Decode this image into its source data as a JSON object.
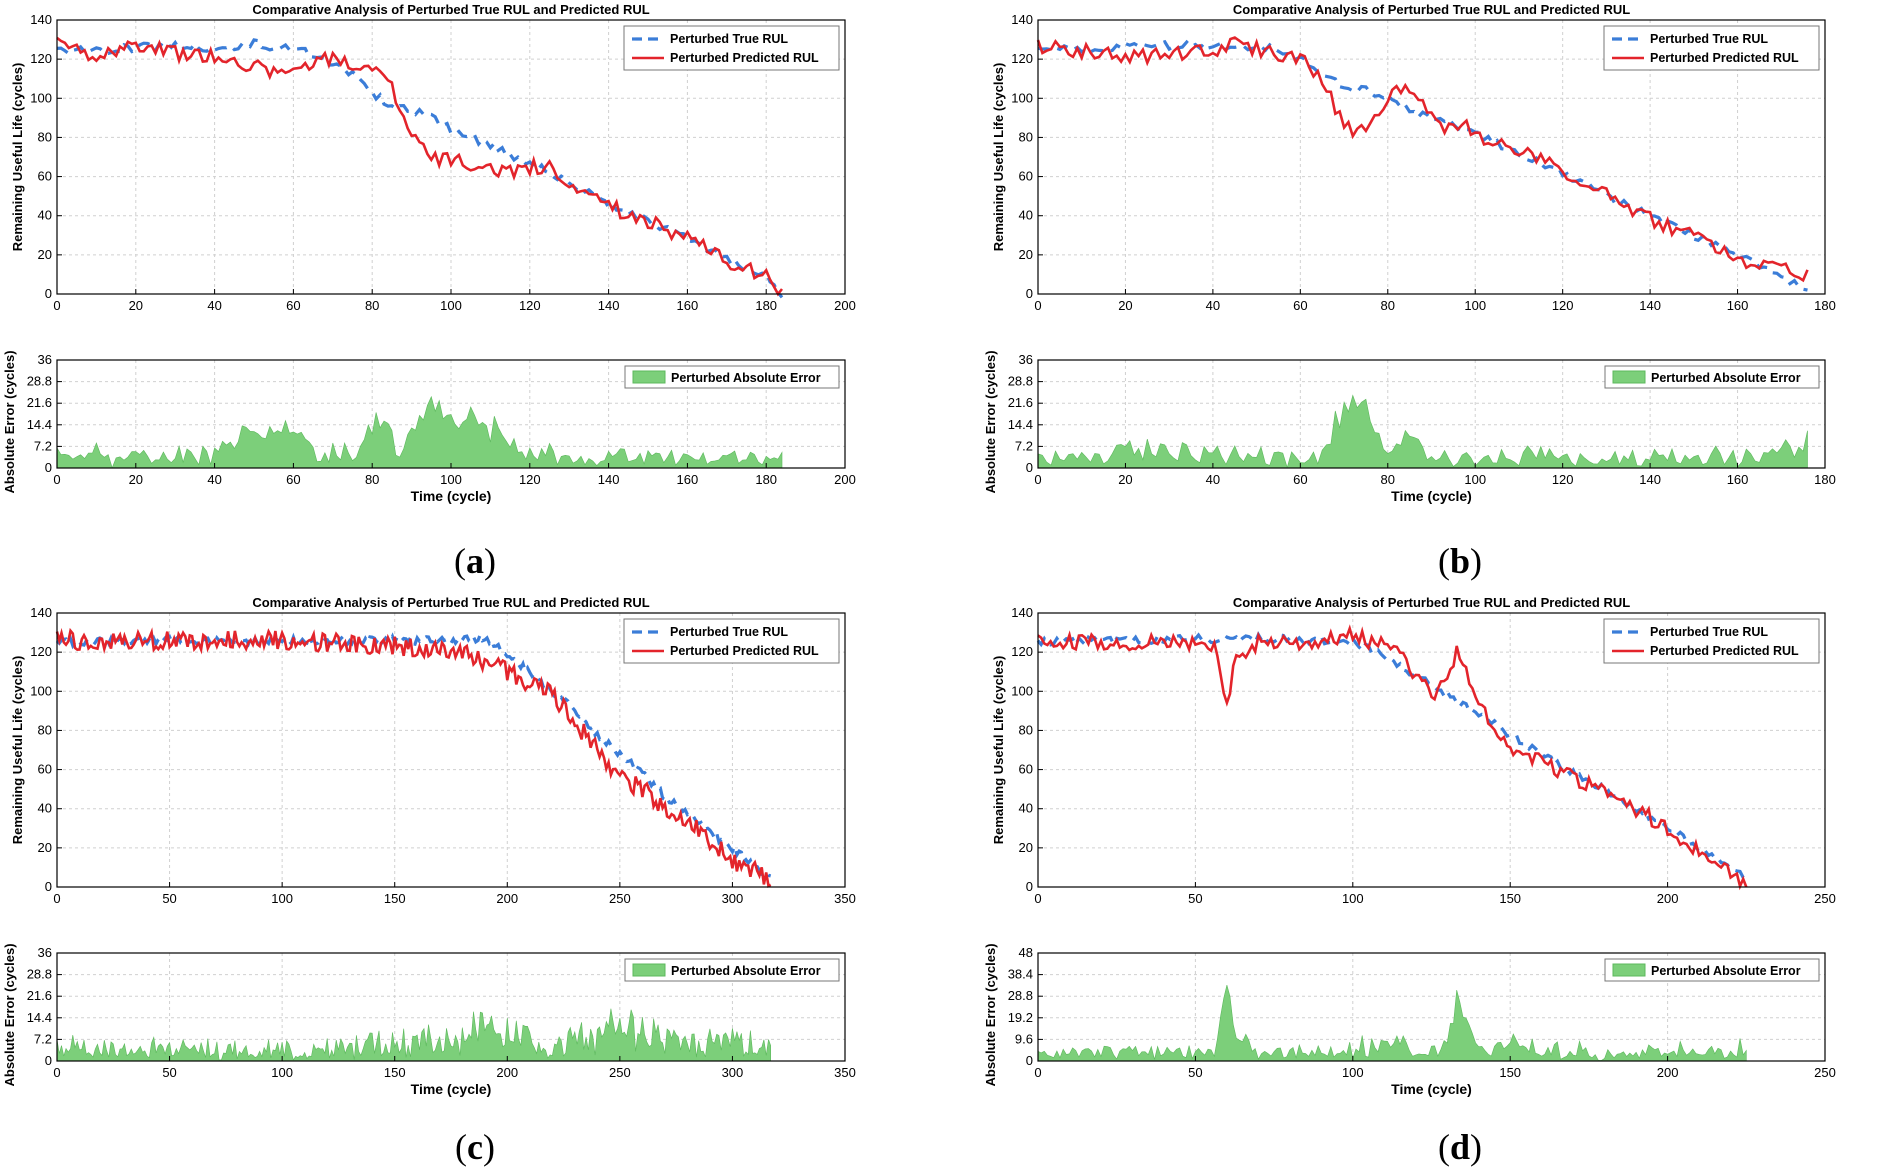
{
  "colors": {
    "true_rul": "#3b7dd8",
    "pred_rul": "#e3242b",
    "error_fill": "#7ccf7a",
    "error_edge": "#5cb85c",
    "grid": "#d0d0d0",
    "axis": "#000000"
  },
  "panels": [
    {
      "label_open": "(",
      "label_letter": "a",
      "label_close": ")"
    },
    {
      "label_open": "(",
      "label_letter": "b",
      "label_close": ")"
    },
    {
      "label_open": "(",
      "label_letter": "c",
      "label_close": ")"
    },
    {
      "label_open": "(",
      "label_letter": "d",
      "label_close": ")"
    }
  ],
  "chart_data": [
    {
      "id": "a",
      "top": {
        "type": "line",
        "title": "Comparative Analysis of Perturbed True RUL and Predicted RUL",
        "ylabel": "Remaining Useful Life (cycles)",
        "xlim": [
          0,
          200
        ],
        "ylim": [
          0,
          140
        ],
        "xticks": [
          0,
          20,
          40,
          60,
          80,
          100,
          120,
          140,
          160,
          180,
          200
        ],
        "yticks": [
          0,
          20,
          40,
          60,
          80,
          100,
          120,
          140
        ],
        "legend": [
          "Perturbed True RUL",
          "Perturbed Predicted RUL"
        ],
        "legend_position": "top-right",
        "n": 185,
        "true_knots": [
          [
            0,
            125
          ],
          [
            10,
            124
          ],
          [
            20,
            126
          ],
          [
            30,
            127
          ],
          [
            40,
            125
          ],
          [
            50,
            128
          ],
          [
            55,
            126
          ],
          [
            60,
            126
          ],
          [
            65,
            122
          ],
          [
            70,
            117
          ],
          [
            75,
            112
          ],
          [
            80,
            103
          ],
          [
            85,
            96
          ],
          [
            90,
            94
          ],
          [
            95,
            90
          ],
          [
            100,
            84
          ],
          [
            105,
            80
          ],
          [
            110,
            76
          ],
          [
            115,
            71
          ],
          [
            120,
            67
          ],
          [
            130,
            57
          ],
          [
            140,
            46
          ],
          [
            150,
            37
          ],
          [
            160,
            28
          ],
          [
            170,
            18
          ],
          [
            180,
            9
          ],
          [
            184,
            0
          ]
        ],
        "pred_knots": [
          [
            0,
            127
          ],
          [
            10,
            122
          ],
          [
            20,
            128
          ],
          [
            30,
            123
          ],
          [
            40,
            122
          ],
          [
            50,
            116
          ],
          [
            60,
            112
          ],
          [
            65,
            116
          ],
          [
            70,
            122
          ],
          [
            75,
            116
          ],
          [
            80,
            117
          ],
          [
            84,
            110
          ],
          [
            88,
            90
          ],
          [
            92,
            76
          ],
          [
            96,
            70
          ],
          [
            100,
            68
          ],
          [
            105,
            67
          ],
          [
            110,
            63
          ],
          [
            115,
            63
          ],
          [
            120,
            65
          ],
          [
            125,
            66
          ],
          [
            130,
            56
          ],
          [
            140,
            45
          ],
          [
            150,
            37
          ],
          [
            160,
            28
          ],
          [
            170,
            17
          ],
          [
            180,
            9
          ],
          [
            184,
            0
          ]
        ],
        "pred_noise": 4
      },
      "bottom": {
        "type": "area",
        "xlabel": "Time (cycle)",
        "ylabel": "Absolute Error (cycles)",
        "xlim": [
          0,
          200
        ],
        "ylim": [
          0,
          36
        ],
        "xticks": [
          0,
          20,
          40,
          60,
          80,
          100,
          120,
          140,
          160,
          180,
          200
        ],
        "yticks": [
          0,
          7.2,
          14.4,
          21.6,
          28.8,
          36
        ],
        "legend": [
          "Perturbed Absolute Error"
        ],
        "legend_position": "top-right"
      }
    },
    {
      "id": "b",
      "top": {
        "type": "line",
        "title": "Comparative Analysis of Perturbed True RUL and Predicted RUL",
        "ylabel": "Remaining Useful Life (cycles)",
        "xlim": [
          0,
          180
        ],
        "ylim": [
          0,
          140
        ],
        "xticks": [
          0,
          20,
          40,
          60,
          80,
          100,
          120,
          140,
          160,
          180
        ],
        "yticks": [
          0,
          20,
          40,
          60,
          80,
          100,
          120,
          140
        ],
        "legend": [
          "Perturbed True RUL",
          "Perturbed Predicted RUL"
        ],
        "legend_position": "top-right",
        "n": 177,
        "true_knots": [
          [
            0,
            125
          ],
          [
            10,
            125
          ],
          [
            20,
            126
          ],
          [
            30,
            127
          ],
          [
            40,
            127
          ],
          [
            50,
            126
          ],
          [
            55,
            125
          ],
          [
            60,
            120
          ],
          [
            65,
            112
          ],
          [
            70,
            106
          ],
          [
            75,
            104
          ],
          [
            80,
            100
          ],
          [
            85,
            94
          ],
          [
            90,
            90
          ],
          [
            95,
            87
          ],
          [
            100,
            82
          ],
          [
            110,
            72
          ],
          [
            120,
            62
          ],
          [
            130,
            50
          ],
          [
            140,
            40
          ],
          [
            150,
            30
          ],
          [
            160,
            20
          ],
          [
            170,
            10
          ],
          [
            176,
            0
          ]
        ],
        "pred_knots": [
          [
            0,
            126
          ],
          [
            10,
            124
          ],
          [
            20,
            122
          ],
          [
            30,
            122
          ],
          [
            40,
            125
          ],
          [
            45,
            128
          ],
          [
            50,
            125
          ],
          [
            55,
            122
          ],
          [
            60,
            120
          ],
          [
            65,
            110
          ],
          [
            68,
            95
          ],
          [
            72,
            82
          ],
          [
            76,
            86
          ],
          [
            80,
            100
          ],
          [
            85,
            106
          ],
          [
            88,
            98
          ],
          [
            92,
            84
          ],
          [
            96,
            88
          ],
          [
            100,
            82
          ],
          [
            110,
            74
          ],
          [
            120,
            62
          ],
          [
            130,
            52
          ],
          [
            140,
            38
          ],
          [
            150,
            30
          ],
          [
            160,
            18
          ],
          [
            170,
            12
          ],
          [
            176,
            10
          ]
        ],
        "pred_noise": 4
      },
      "bottom": {
        "type": "area",
        "xlabel": "Time (cycle)",
        "ylabel": "Absolute Error (cycles)",
        "xlim": [
          0,
          180
        ],
        "ylim": [
          0,
          36
        ],
        "xticks": [
          0,
          20,
          40,
          60,
          80,
          100,
          120,
          140,
          160,
          180
        ],
        "yticks": [
          0,
          7.2,
          14.4,
          21.6,
          28.8,
          36
        ],
        "legend": [
          "Perturbed Absolute Error"
        ],
        "legend_position": "top-right"
      }
    },
    {
      "id": "c",
      "top": {
        "type": "line",
        "title": "Comparative Analysis of Perturbed True RUL and Predicted RUL",
        "ylabel": "Remaining Useful Life (cycles)",
        "xlim": [
          0,
          350
        ],
        "ylim": [
          0,
          140
        ],
        "xticks": [
          0,
          50,
          100,
          150,
          200,
          250,
          300,
          350
        ],
        "yticks": [
          0,
          20,
          40,
          60,
          80,
          100,
          120,
          140
        ],
        "legend": [
          "Perturbed True RUL",
          "Perturbed Predicted RUL"
        ],
        "legend_position": "top-right",
        "n": 318,
        "true_knots": [
          [
            0,
            125
          ],
          [
            50,
            126
          ],
          [
            100,
            126
          ],
          [
            150,
            126
          ],
          [
            180,
            126
          ],
          [
            190,
            128
          ],
          [
            200,
            118
          ],
          [
            210,
            110
          ],
          [
            220,
            100
          ],
          [
            230,
            90
          ],
          [
            240,
            78
          ],
          [
            250,
            68
          ],
          [
            260,
            58
          ],
          [
            270,
            46
          ],
          [
            280,
            38
          ],
          [
            290,
            28
          ],
          [
            300,
            20
          ],
          [
            310,
            10
          ],
          [
            317,
            4
          ]
        ],
        "pred_knots": [
          [
            0,
            126
          ],
          [
            50,
            126
          ],
          [
            100,
            126
          ],
          [
            150,
            123
          ],
          [
            180,
            120
          ],
          [
            190,
            114
          ],
          [
            200,
            110
          ],
          [
            210,
            104
          ],
          [
            220,
            98
          ],
          [
            230,
            84
          ],
          [
            240,
            70
          ],
          [
            250,
            56
          ],
          [
            260,
            50
          ],
          [
            270,
            40
          ],
          [
            280,
            34
          ],
          [
            290,
            24
          ],
          [
            300,
            14
          ],
          [
            310,
            8
          ],
          [
            317,
            4
          ]
        ],
        "pred_noise": 5
      },
      "bottom": {
        "type": "area",
        "xlabel": "Time (cycle)",
        "ylabel": "Absolute Error (cycles)",
        "xlim": [
          0,
          350
        ],
        "ylim": [
          0,
          36
        ],
        "xticks": [
          0,
          50,
          100,
          150,
          200,
          250,
          300,
          350
        ],
        "yticks": [
          0,
          7.2,
          14.4,
          21.6,
          28.8,
          36
        ],
        "legend": [
          "Perturbed Absolute Error"
        ],
        "legend_position": "top-right"
      }
    },
    {
      "id": "d",
      "top": {
        "type": "line",
        "title": "Comparative Analysis of Perturbed True RUL and Predicted RUL",
        "ylabel": "Remaining Useful Life (cycles)",
        "xlim": [
          0,
          250
        ],
        "ylim": [
          0,
          140
        ],
        "xticks": [
          0,
          50,
          100,
          150,
          200,
          250
        ],
        "yticks": [
          0,
          20,
          40,
          60,
          80,
          100,
          120,
          140
        ],
        "legend": [
          "Perturbed True RUL",
          "Perturbed Predicted RUL"
        ],
        "legend_position": "top-right",
        "n": 226,
        "true_knots": [
          [
            0,
            125
          ],
          [
            50,
            127
          ],
          [
            60,
            126
          ],
          [
            70,
            127
          ],
          [
            80,
            127
          ],
          [
            90,
            126
          ],
          [
            100,
            125
          ],
          [
            110,
            118
          ],
          [
            120,
            108
          ],
          [
            130,
            98
          ],
          [
            140,
            88
          ],
          [
            150,
            78
          ],
          [
            160,
            68
          ],
          [
            170,
            58
          ],
          [
            180,
            50
          ],
          [
            190,
            40
          ],
          [
            200,
            30
          ],
          [
            210,
            20
          ],
          [
            220,
            10
          ],
          [
            225,
            4
          ]
        ],
        "pred_knots": [
          [
            0,
            125
          ],
          [
            50,
            125
          ],
          [
            56,
            124
          ],
          [
            60,
            93
          ],
          [
            63,
            118
          ],
          [
            70,
            125
          ],
          [
            80,
            124
          ],
          [
            90,
            124
          ],
          [
            98,
            130
          ],
          [
            105,
            126
          ],
          [
            110,
            124
          ],
          [
            115,
            122
          ],
          [
            120,
            108
          ],
          [
            125,
            98
          ],
          [
            130,
            106
          ],
          [
            133,
            120
          ],
          [
            136,
            110
          ],
          [
            140,
            95
          ],
          [
            145,
            80
          ],
          [
            150,
            72
          ],
          [
            160,
            64
          ],
          [
            170,
            56
          ],
          [
            180,
            48
          ],
          [
            190,
            40
          ],
          [
            200,
            30
          ],
          [
            210,
            18
          ],
          [
            220,
            8
          ],
          [
            225,
            0
          ]
        ],
        "pred_noise": 4
      },
      "bottom": {
        "type": "area",
        "xlabel": "Time (cycle)",
        "ylabel": "Absolute Error (cycles)",
        "xlim": [
          0,
          250
        ],
        "ylim": [
          0,
          48
        ],
        "xticks": [
          0,
          50,
          100,
          150,
          200,
          250
        ],
        "yticks": [
          0,
          9.6,
          19.2,
          28.8,
          38.4,
          48
        ],
        "legend": [
          "Perturbed Absolute Error"
        ],
        "legend_position": "top-right"
      }
    }
  ]
}
